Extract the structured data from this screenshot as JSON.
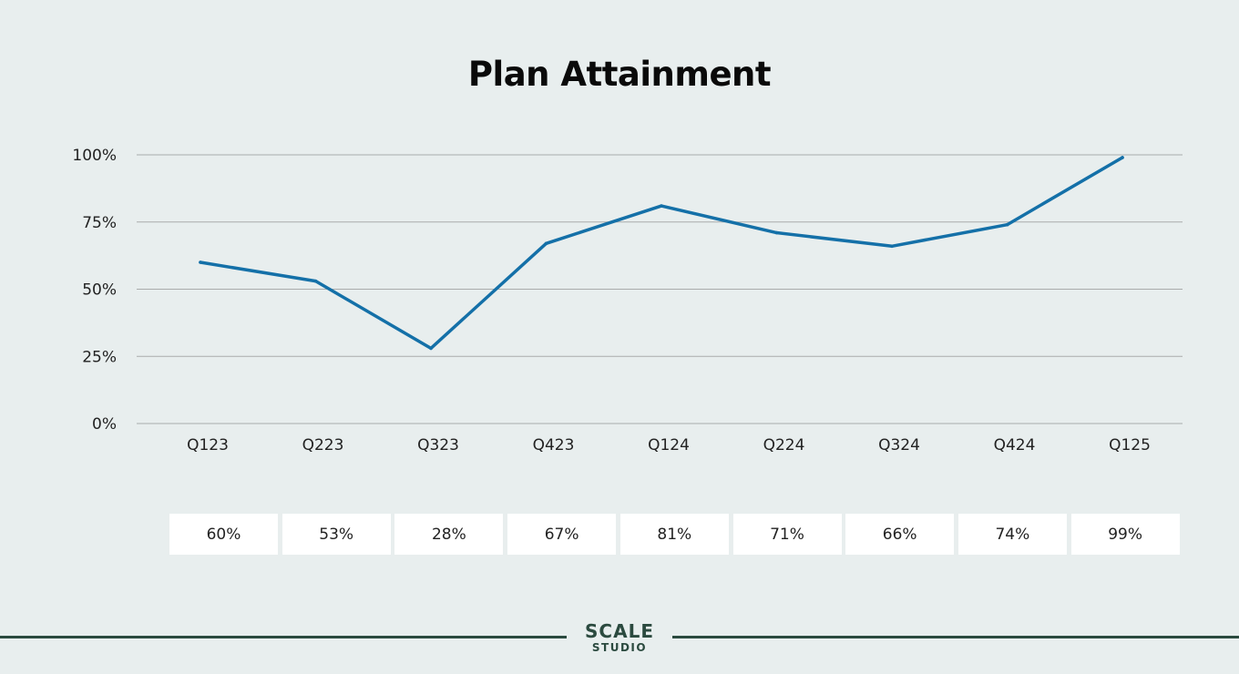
{
  "chart_data": {
    "type": "line",
    "title": "Plan Attainment",
    "categories": [
      "Q123",
      "Q223",
      "Q323",
      "Q423",
      "Q124",
      "Q224",
      "Q324",
      "Q424",
      "Q125"
    ],
    "series": [
      {
        "values": [
          0.6,
          0.53,
          0.28,
          0.67,
          0.81,
          0.71,
          0.66,
          0.74,
          0.99
        ],
        "color": "#1470a8"
      }
    ],
    "data_labels": [
      "60%",
      "53%",
      "28%",
      "67%",
      "81%",
      "71%",
      "66%",
      "74%",
      "99%"
    ],
    "ylim": [
      0,
      1
    ],
    "yticks": [
      {
        "value": 0,
        "label": "0%"
      },
      {
        "value": 0.25,
        "label": "25%"
      },
      {
        "value": 0.5,
        "label": "50%"
      },
      {
        "value": 0.75,
        "label": "75%"
      },
      {
        "value": 1,
        "label": "100%"
      }
    ],
    "grid": true,
    "legend": "none"
  },
  "brand": {
    "name": "SCALE",
    "sub": "STUDIO",
    "color": "#2b4a3f"
  }
}
